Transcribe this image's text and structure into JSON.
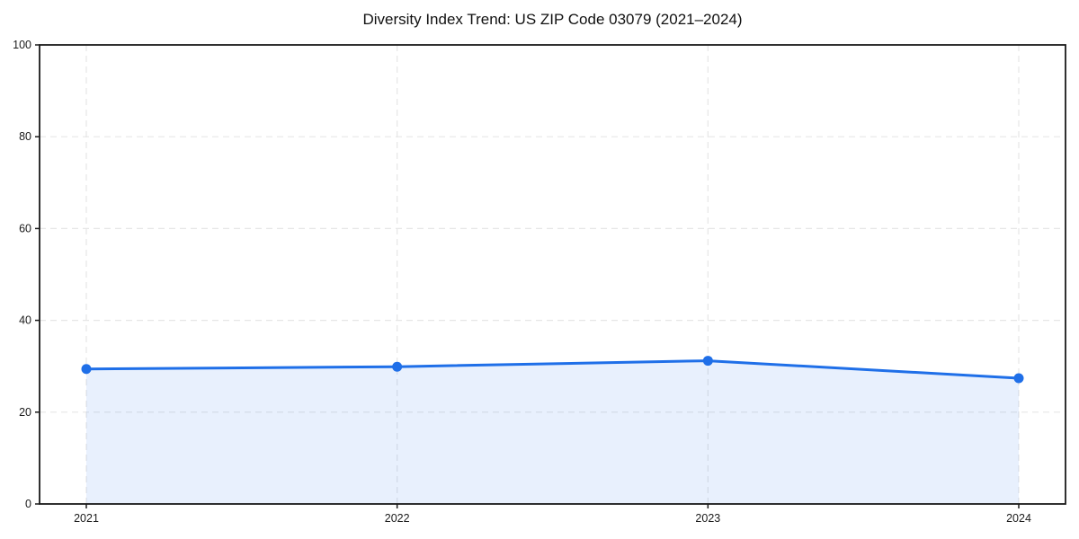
{
  "chart_data": {
    "type": "line",
    "title": "Diversity Index Trend: US ZIP Code 03079 (2021–2024)",
    "categories": [
      "2021",
      "2022",
      "2023",
      "2024"
    ],
    "series": [
      {
        "name": "Diversity Index",
        "values": [
          29.4,
          29.9,
          31.2,
          27.4
        ]
      }
    ],
    "xlabel": "",
    "ylabel": "",
    "ylim": [
      0,
      100
    ],
    "yticks": [
      0,
      20,
      40,
      60,
      80,
      100
    ],
    "grid": "dashed-both-axes",
    "legend": "none",
    "style": {
      "line_color": "#1f6fe8",
      "marker_color": "#1f6fe8",
      "area_fill_color": "#1f6fe8",
      "area_fill_opacity": 0.1,
      "grid_color": "#e6e6e6",
      "spine_color": "#1a1a1a",
      "text_color": "#1a1a1a",
      "background_color": "#ffffff"
    }
  }
}
